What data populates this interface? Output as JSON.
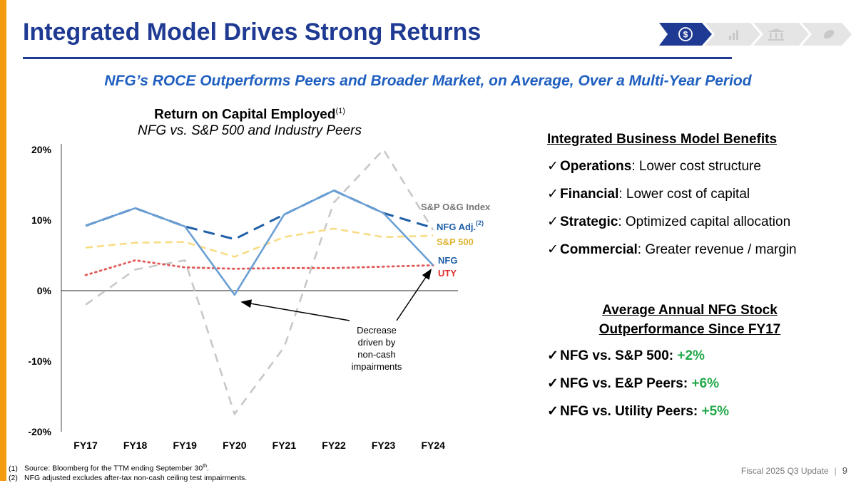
{
  "header": {
    "title": "Integrated Model Drives Strong Returns",
    "subtitle": "NFG’s ROCE Outperforms Peers and Broader Market, on Average, Over a Multi-Year Period"
  },
  "nav_icons": [
    "dollar-cycle-icon",
    "bar-chart-icon",
    "bank-icon",
    "leaf-icon"
  ],
  "chart_title": {
    "line1": "Return on Capital Employed",
    "sup": "(1)",
    "line2": "NFG vs. S&P 500 and Industry Peers"
  },
  "chart_data": {
    "type": "line",
    "categories": [
      "FY17",
      "FY18",
      "FY19",
      "FY20",
      "FY21",
      "FY22",
      "FY23",
      "FY24"
    ],
    "ylim": [
      -20,
      20
    ],
    "yticks": [
      20,
      10,
      0,
      -10,
      -20
    ],
    "ytick_labels": [
      "20%",
      "10%",
      "0%",
      "-10%",
      "-20%"
    ],
    "series": [
      {
        "name": "S&P O&G Index",
        "color": "#c8c8c8",
        "style": "dashed",
        "values": [
          -2,
          3,
          4.3,
          -17.5,
          -8,
          12.5,
          20,
          8.6
        ]
      },
      {
        "name": "NFG Adj.",
        "sup": "(2)",
        "color": "#1f5fa8",
        "style": "dashed",
        "values": [
          9.2,
          11.7,
          9.1,
          7.3,
          10.8,
          14.2,
          11,
          8.9
        ]
      },
      {
        "name": "S&P 500",
        "color": "#f8dc84",
        "style": "dashed",
        "values": [
          6.1,
          6.8,
          6.9,
          4.8,
          7.6,
          8.8,
          7.6,
          7.8
        ]
      },
      {
        "name": "NFG",
        "color": "#6a9fd4",
        "style": "solid",
        "values": [
          9.2,
          11.7,
          9.1,
          -0.6,
          10.8,
          14.2,
          11,
          3.6
        ]
      },
      {
        "name": "UTY",
        "color": "#e05a5a",
        "style": "dotted",
        "values": [
          2.2,
          4.3,
          3.3,
          3.1,
          3.2,
          3.2,
          3.4,
          3.6
        ]
      }
    ],
    "annotation": "Decrease driven by non-cash impairments"
  },
  "benefits": {
    "heading": "Integrated Business Model Benefits",
    "items": [
      {
        "bold": "Operations",
        "rest": ": Lower cost structure"
      },
      {
        "bold": "Financial",
        "rest": ": Lower cost of capital"
      },
      {
        "bold": "Strategic",
        "rest": ": Optimized capital allocation"
      },
      {
        "bold": "Commercial",
        "rest": ": Greater revenue / margin"
      }
    ]
  },
  "outperformance": {
    "heading_line1": "Average Annual NFG Stock",
    "heading_line2": "Outperformance Since FY17",
    "items": [
      {
        "label": "NFG vs. S&P 500: ",
        "value": "+2%"
      },
      {
        "label": "NFG vs. E&P Peers: ",
        "value": "+6%"
      },
      {
        "label": "NFG vs. Utility Peers: ",
        "value": "+5%"
      }
    ]
  },
  "check_glyph": "✓",
  "footnotes": [
    {
      "num": "(1)",
      "text": "Source: Bloomberg for the TTM ending September 30",
      "sup": "th",
      "tail": "."
    },
    {
      "num": "(2)",
      "text": "NFG adjusted excludes after-tax non-cash ceiling test impairments.",
      "sup": "",
      "tail": ""
    }
  ],
  "footer": {
    "label": "Fiscal 2025 Q3 Update",
    "page": "9"
  }
}
